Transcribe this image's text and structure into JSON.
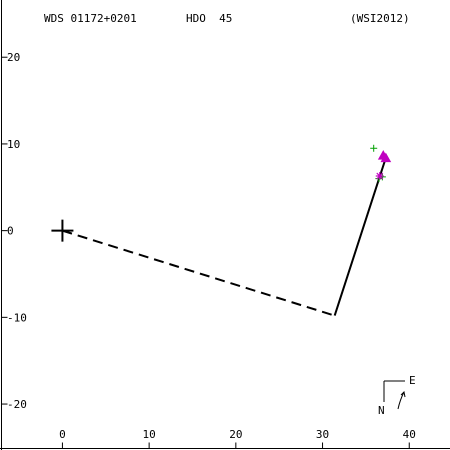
{
  "header": {
    "wds_id": "WDS 01172+0201",
    "discoverer": "HDO  45",
    "reference": "(WSI2012)"
  },
  "compass": {
    "north_label": "N",
    "east_label": "E"
  },
  "colors": {
    "axes": "#000000",
    "orbit": "#000000",
    "green_obs": "#00a000",
    "magenta_obs": "#c000c0",
    "background": "#ffffff"
  },
  "chart_data": {
    "type": "scatter",
    "title": "",
    "xlabel": "",
    "ylabel": "",
    "xlim": [
      -7.2,
      44.7
    ],
    "ylim": [
      -25.3,
      26.6
    ],
    "x_ticks": [
      0,
      10,
      20,
      30,
      40
    ],
    "y_ticks": [
      20,
      10,
      0,
      -10,
      -20
    ],
    "grid": false,
    "primary_star": {
      "x": 0,
      "y": 0,
      "marker": "plus"
    },
    "dashed_line": [
      {
        "x": 0,
        "y": 0
      },
      {
        "x": 31.4,
        "y": -9.8
      }
    ],
    "solid_line": [
      {
        "x": 31.4,
        "y": -9.8
      },
      {
        "x": 37.3,
        "y": 8.4
      }
    ],
    "series": [
      {
        "points": [
          {
            "x": 35.9,
            "y": 9.5,
            "marker": "plus",
            "color": "#00a000"
          },
          {
            "x": 36.5,
            "y": 6.0,
            "marker": "plus",
            "color": "#00a000"
          },
          {
            "x": 36.9,
            "y": 6.2,
            "marker": "plus",
            "color": "#00a000"
          }
        ]
      },
      {
        "points": [
          {
            "x": 37.0,
            "y": 8.6,
            "marker": "triangle",
            "color": "#c000c0"
          },
          {
            "x": 37.3,
            "y": 8.3,
            "marker": "triangle",
            "color": "#c000c0"
          },
          {
            "x": 36.6,
            "y": 6.3,
            "marker": "asterisk",
            "color": "#c000c0"
          }
        ]
      }
    ]
  }
}
